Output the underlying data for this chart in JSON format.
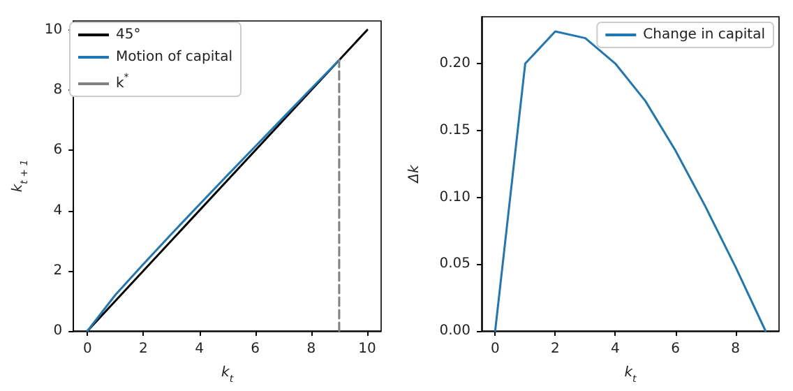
{
  "chart_data": [
    {
      "type": "line",
      "xlabel": "k$_{t}$",
      "ylabel": "k$_{t + 1}$",
      "xlim": [
        -0.5,
        10.5
      ],
      "ylim": [
        0,
        10.3
      ],
      "xticks": [
        0,
        2,
        4,
        6,
        8,
        10
      ],
      "yticks": [
        0,
        2,
        4,
        6,
        8,
        10
      ],
      "grid": false,
      "legend": "top left",
      "marker": "none",
      "series": [
        {
          "name": "45°",
          "color": "#000000",
          "x": [
            0,
            10
          ],
          "values": [
            0,
            10
          ]
        },
        {
          "name": "Motion of capital",
          "color": "#1f77b4",
          "x": [
            0,
            1,
            2,
            3,
            4,
            5,
            6,
            7,
            8,
            9
          ],
          "values": [
            0,
            1.2,
            2.22,
            3.22,
            4.2,
            5.17,
            6.13,
            7.09,
            8.05,
            9
          ]
        },
        {
          "name": "k$^{*}$",
          "color": "#808080",
          "line_style": "dashed",
          "x": [
            9,
            9
          ],
          "values": [
            0,
            9
          ]
        }
      ]
    },
    {
      "type": "line",
      "xlabel": "k$_{t}$",
      "ylabel": "Δk",
      "xlim": [
        -0.45,
        9.45
      ],
      "ylim": [
        0,
        0.235
      ],
      "xticks": [
        0,
        2,
        4,
        6,
        8
      ],
      "yticks": [
        {
          "value": 0,
          "label": "0.00"
        },
        0.05,
        {
          "value": 0.1,
          "label": "0.10"
        },
        0.15,
        {
          "value": 0.2,
          "label": "0.20"
        }
      ],
      "grid": false,
      "legend": "top right",
      "marker": "none",
      "series": [
        {
          "name": "Change in capital",
          "color": "#1f77b4",
          "x": [
            0,
            1,
            2,
            3,
            4,
            5,
            6,
            7,
            8,
            9
          ],
          "values": [
            0,
            0.2,
            0.224,
            0.219,
            0.2,
            0.172,
            0.135,
            0.093,
            0.048,
            0
          ]
        }
      ]
    }
  ]
}
